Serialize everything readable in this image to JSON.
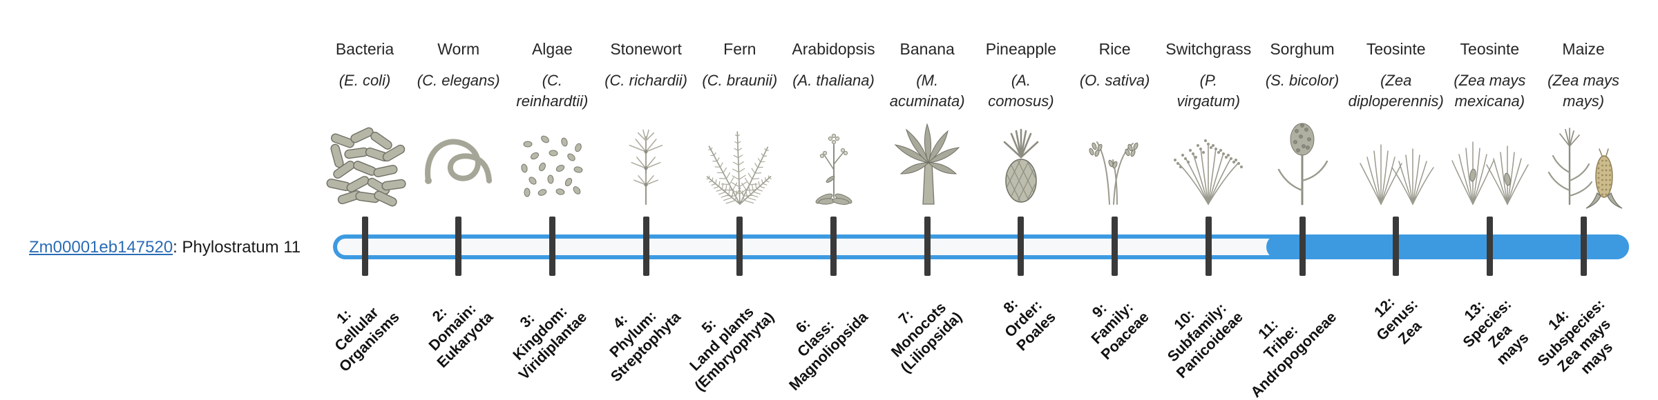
{
  "gene_label": {
    "id": "Zm00001eb147520",
    "suffix": ": Phylostratum 11",
    "phylostratum": 11
  },
  "colors": {
    "accent": "#3d9ae1",
    "track": "#f6f8f9",
    "tick": "#3a3a3a",
    "link": "#2b6cb5",
    "text": "#262626"
  },
  "organisms": [
    {
      "name": "Bacteria",
      "sci_lines": [
        "(E. coli)"
      ],
      "icon": "bacteria-icon"
    },
    {
      "name": "Worm",
      "sci_lines": [
        "(C. elegans)"
      ],
      "icon": "worm-icon"
    },
    {
      "name": "Algae",
      "sci_lines": [
        "(C.",
        "reinhardtii)"
      ],
      "icon": "algae-icon"
    },
    {
      "name": "Stonewort",
      "sci_lines": [
        "(C. richardii)"
      ],
      "icon": "stonewort-icon"
    },
    {
      "name": "Fern",
      "sci_lines": [
        "(C. braunii)"
      ],
      "icon": "fern-icon"
    },
    {
      "name": "Arabidopsis",
      "sci_lines": [
        "(A. thaliana)"
      ],
      "icon": "arabidopsis-icon"
    },
    {
      "name": "Banana",
      "sci_lines": [
        "(M.",
        "acuminata)"
      ],
      "icon": "banana-icon"
    },
    {
      "name": "Pineapple",
      "sci_lines": [
        "(A.",
        "comosus)"
      ],
      "icon": "pineapple-icon"
    },
    {
      "name": "Rice",
      "sci_lines": [
        "(O. sativa)"
      ],
      "icon": "rice-icon"
    },
    {
      "name": "Switchgrass",
      "sci_lines": [
        "(P.",
        "virgatum)"
      ],
      "icon": "switchgrass-icon"
    },
    {
      "name": "Sorghum",
      "sci_lines": [
        "(S. bicolor)"
      ],
      "icon": "sorghum-icon"
    },
    {
      "name": "Teosinte",
      "sci_lines": [
        "(Zea",
        "diploperennis)"
      ],
      "icon": "teosinte-a-icon"
    },
    {
      "name": "Teosinte",
      "sci_lines": [
        "(Zea mays",
        "mexicana)"
      ],
      "icon": "teosinte-b-icon"
    },
    {
      "name": "Maize",
      "sci_lines": [
        "(Zea mays",
        "mays)"
      ],
      "icon": "maize-icon"
    }
  ],
  "strata": [
    {
      "lines": [
        "1:",
        "Cellular",
        "Organisms"
      ]
    },
    {
      "lines": [
        "2:",
        "Domain:",
        "Eukaryota"
      ]
    },
    {
      "lines": [
        "3:",
        "Kingdom:",
        "Viridiplantae"
      ]
    },
    {
      "lines": [
        "4:",
        "Phylum:",
        "Streptophyta"
      ]
    },
    {
      "lines": [
        "5:",
        "Land plants",
        "(Embryophyta)"
      ]
    },
    {
      "lines": [
        "6:",
        "Class:",
        "Magnoliopsida"
      ]
    },
    {
      "lines": [
        "7:",
        "Monocots",
        "(Liliopsida)"
      ]
    },
    {
      "lines": [
        "8:",
        "Order:",
        "Poales"
      ]
    },
    {
      "lines": [
        "9:",
        "Family:",
        "Poaceae"
      ]
    },
    {
      "lines": [
        "10:",
        "Subfamily:",
        "Panicoideae"
      ]
    },
    {
      "lines": [
        "11:",
        "Tribe:",
        "Andropogoneae"
      ]
    },
    {
      "lines": [
        "12:",
        "Genus:",
        "Zea"
      ]
    },
    {
      "lines": [
        "13:",
        "Species:",
        "Zea",
        "mays"
      ]
    },
    {
      "lines": [
        "14:",
        "Subspecies:",
        "Zea mays",
        "mays"
      ]
    }
  ]
}
